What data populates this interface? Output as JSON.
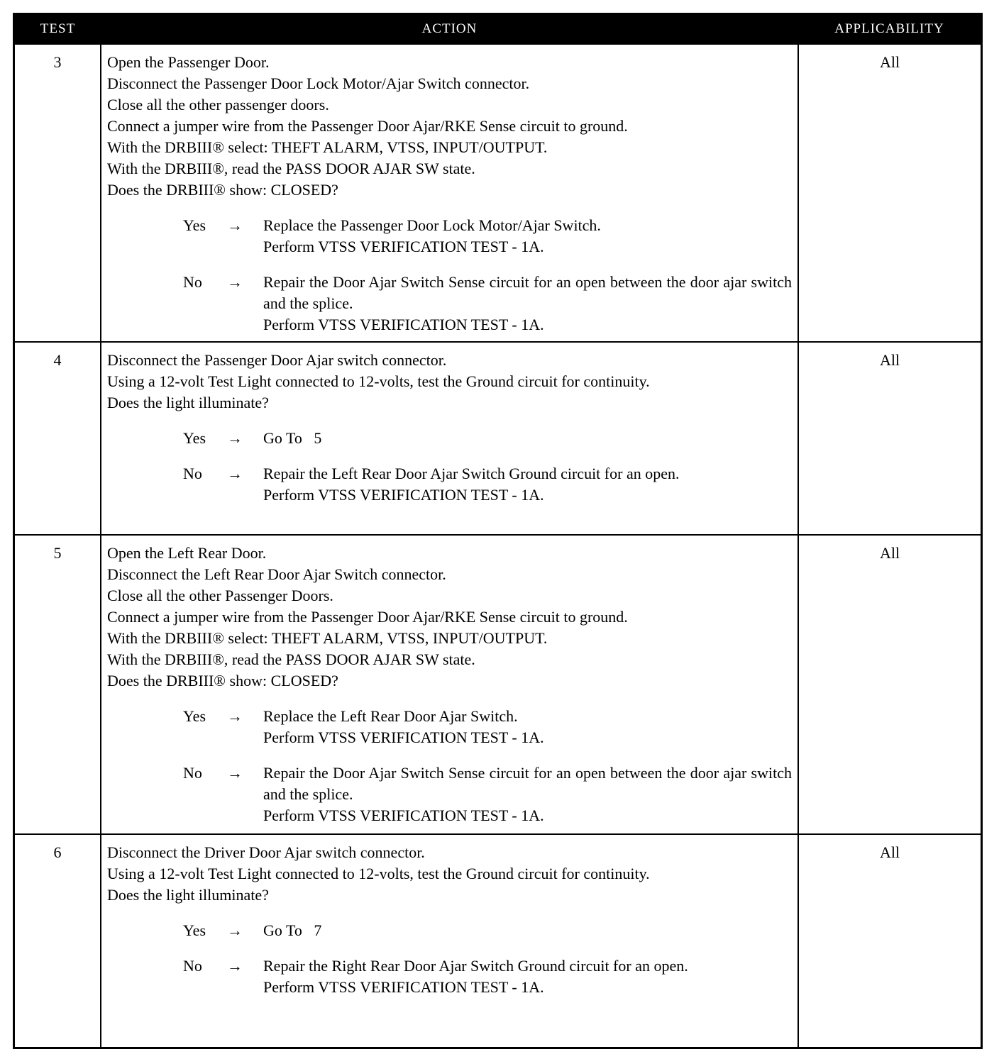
{
  "header": {
    "test": "TEST",
    "action": "ACTION",
    "applicability": "APPLICABILITY"
  },
  "arrow": "→",
  "rows": [
    {
      "test": "3",
      "lines": [
        "Open the Passenger Door.",
        "Disconnect the Passenger Door Lock Motor/Ajar Switch connector.",
        "Close all the other passenger doors.",
        "Connect a jumper wire from the Passenger Door Ajar/RKE Sense circuit to ground.",
        "With the DRBIII® select: THEFT ALARM, VTSS, INPUT/OUTPUT.",
        "With the DRBIII®, read the PASS DOOR AJAR SW state.",
        "Does the DRBIII® show: CLOSED?"
      ],
      "yes_label": "Yes",
      "yes": [
        "Replace the Passenger Door Lock Motor/Ajar Switch.",
        "Perform VTSS VERIFICATION TEST - 1A."
      ],
      "no_label": "No",
      "no": [
        "Repair the Door Ajar Switch Sense circuit for an open between the door ajar switch and the splice.",
        "Perform VTSS VERIFICATION TEST - 1A."
      ],
      "applicability": "All"
    },
    {
      "test": "4",
      "lines": [
        "Disconnect the Passenger Door Ajar switch connector.",
        "Using a 12-volt Test Light connected to 12-volts, test the Ground circuit for continuity.",
        "Does the light illuminate?"
      ],
      "yes_label": "Yes",
      "yes": [
        "Go To   5"
      ],
      "no_label": "No",
      "no": [
        "Repair the Left Rear Door Ajar Switch Ground circuit for an open.",
        "Perform VTSS VERIFICATION TEST - 1A."
      ],
      "applicability": "All"
    },
    {
      "test": "5",
      "lines": [
        "Open the Left Rear Door.",
        "Disconnect the Left Rear Door Ajar Switch connector.",
        "Close all the other Passenger Doors.",
        "Connect a jumper wire from the Passenger Door Ajar/RKE Sense circuit to ground.",
        "With the DRBIII® select: THEFT ALARM, VTSS, INPUT/OUTPUT.",
        "With the DRBIII®, read the PASS DOOR AJAR SW state.",
        "Does the DRBIII® show: CLOSED?"
      ],
      "yes_label": "Yes",
      "yes": [
        "Replace the Left Rear Door Ajar Switch.",
        "Perform VTSS VERIFICATION TEST - 1A."
      ],
      "no_label": "No",
      "no": [
        "Repair the Door Ajar Switch Sense circuit for an open between the door ajar switch and the splice.",
        "Perform VTSS VERIFICATION TEST - 1A."
      ],
      "applicability": "All"
    },
    {
      "test": "6",
      "lines": [
        "Disconnect the Driver Door Ajar switch connector.",
        "Using a 12-volt Test Light connected to 12-volts, test the Ground circuit for continuity.",
        "Does the light illuminate?"
      ],
      "yes_label": "Yes",
      "yes": [
        "Go To   7"
      ],
      "no_label": "No",
      "no": [
        "Repair the Right Rear Door Ajar Switch Ground circuit for an open.",
        "Perform VTSS VERIFICATION TEST - 1A."
      ],
      "applicability": "All"
    }
  ]
}
